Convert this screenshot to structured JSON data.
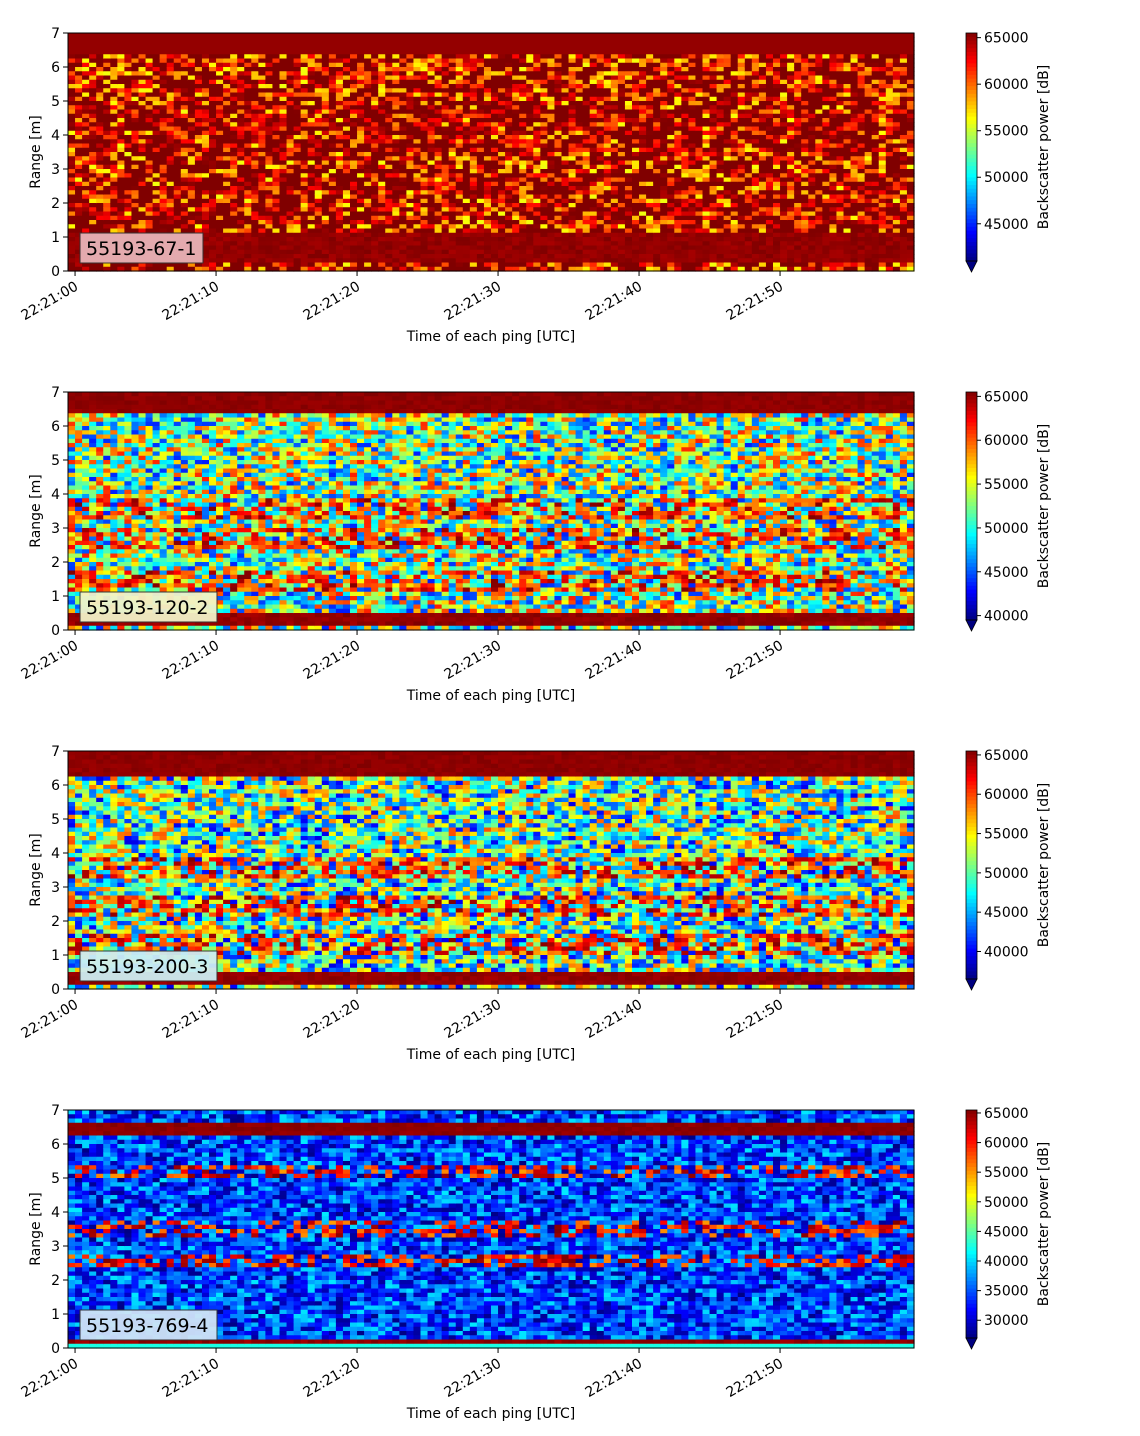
{
  "chart_data": [
    {
      "type": "heatmap",
      "label": "55193-67-1",
      "xlabel": "Time of each ping [UTC]",
      "ylabel": "Range [m]",
      "colorbar_label": "Backscatter power [dB]",
      "colormap": "jet",
      "x_range": [
        "22:21:00",
        "22:21:59"
      ],
      "x_ticks": [
        "22:21:00",
        "22:21:10",
        "22:21:20",
        "22:21:30",
        "22:21:40",
        "22:21:50"
      ],
      "ylim": [
        0,
        7
      ],
      "y_ticks": [
        "0",
        "1",
        "2",
        "3",
        "4",
        "5",
        "6",
        "7"
      ],
      "clim": [
        41000,
        65500
      ],
      "cbar_ticks": [
        "45000",
        "50000",
        "55000",
        "60000",
        "65000"
      ],
      "label_box_color": "#e8b4b8",
      "features": {
        "top_band": [
          6.4,
          7.0
        ],
        "bottom_band": [
          0.2,
          1.1
        ],
        "layers": [
          [
            3.9,
            0.4
          ],
          [
            2.5,
            0.3
          ],
          [
            1.7,
            0.3
          ],
          [
            4.6,
            0.4
          ]
        ]
      }
    },
    {
      "type": "heatmap",
      "label": "55193-120-2",
      "xlabel": "Time of each ping [UTC]",
      "ylabel": "Range [m]",
      "colorbar_label": "Backscatter power [dB]",
      "colormap": "jet",
      "x_range": [
        "22:21:00",
        "22:21:59"
      ],
      "x_ticks": [
        "22:21:00",
        "22:21:10",
        "22:21:20",
        "22:21:30",
        "22:21:40",
        "22:21:50"
      ],
      "ylim": [
        0,
        7
      ],
      "y_ticks": [
        "0",
        "1",
        "2",
        "3",
        "4",
        "5",
        "6",
        "7"
      ],
      "clim": [
        39500,
        65500
      ],
      "cbar_ticks": [
        "40000",
        "45000",
        "50000",
        "55000",
        "60000",
        "65000"
      ],
      "label_box_color": "#f2f2c8",
      "features": {
        "top_band": [
          6.4,
          7.0
        ],
        "bottom_band": [
          0.15,
          0.5
        ],
        "layers": [
          [
            3.6,
            0.3
          ],
          [
            1.4,
            0.3
          ],
          [
            2.7,
            0.3
          ]
        ]
      }
    },
    {
      "type": "heatmap",
      "label": "55193-200-3",
      "xlabel": "Time of each ping [UTC]",
      "ylabel": "Range [m]",
      "colorbar_label": "Backscatter power [dB]",
      "colormap": "jet",
      "x_range": [
        "22:21:00",
        "22:21:59"
      ],
      "x_ticks": [
        "22:21:00",
        "22:21:10",
        "22:21:20",
        "22:21:30",
        "22:21:40",
        "22:21:50"
      ],
      "ylim": [
        0,
        7
      ],
      "y_ticks": [
        "0",
        "1",
        "2",
        "3",
        "4",
        "5",
        "6",
        "7"
      ],
      "clim": [
        36500,
        65500
      ],
      "cbar_ticks": [
        "40000",
        "45000",
        "50000",
        "55000",
        "60000",
        "65000"
      ],
      "label_box_color": "#cdeef2",
      "features": {
        "top_band": [
          6.3,
          7.0
        ],
        "bottom_band": [
          0.15,
          0.45
        ],
        "layers": [
          [
            3.6,
            0.3
          ],
          [
            1.3,
            0.3
          ],
          [
            2.4,
            0.3
          ]
        ]
      }
    },
    {
      "type": "heatmap",
      "label": "55193-769-4",
      "xlabel": "Time of each ping [UTC]",
      "ylabel": "Range [m]",
      "colorbar_label": "Backscatter power [dB]",
      "colormap": "jet",
      "x_range": [
        "22:21:00",
        "22:21:59"
      ],
      "x_ticks": [
        "22:21:00",
        "22:21:10",
        "22:21:20",
        "22:21:30",
        "22:21:40",
        "22:21:50"
      ],
      "ylim": [
        0,
        7
      ],
      "y_ticks": [
        "0",
        "1",
        "2",
        "3",
        "4",
        "5",
        "6",
        "7"
      ],
      "clim": [
        27000,
        65500
      ],
      "cbar_ticks": [
        "30000",
        "35000",
        "40000",
        "45000",
        "50000",
        "55000",
        "60000",
        "65000"
      ],
      "label_box_color": "#cfe4f6",
      "features": {
        "top_band": [
          6.3,
          6.6
        ],
        "bottom_band": [
          0.1,
          0.3
        ],
        "layers": [
          [
            3.5,
            0.2
          ],
          [
            2.6,
            0.2
          ],
          [
            5.2,
            0.2
          ]
        ]
      }
    }
  ]
}
